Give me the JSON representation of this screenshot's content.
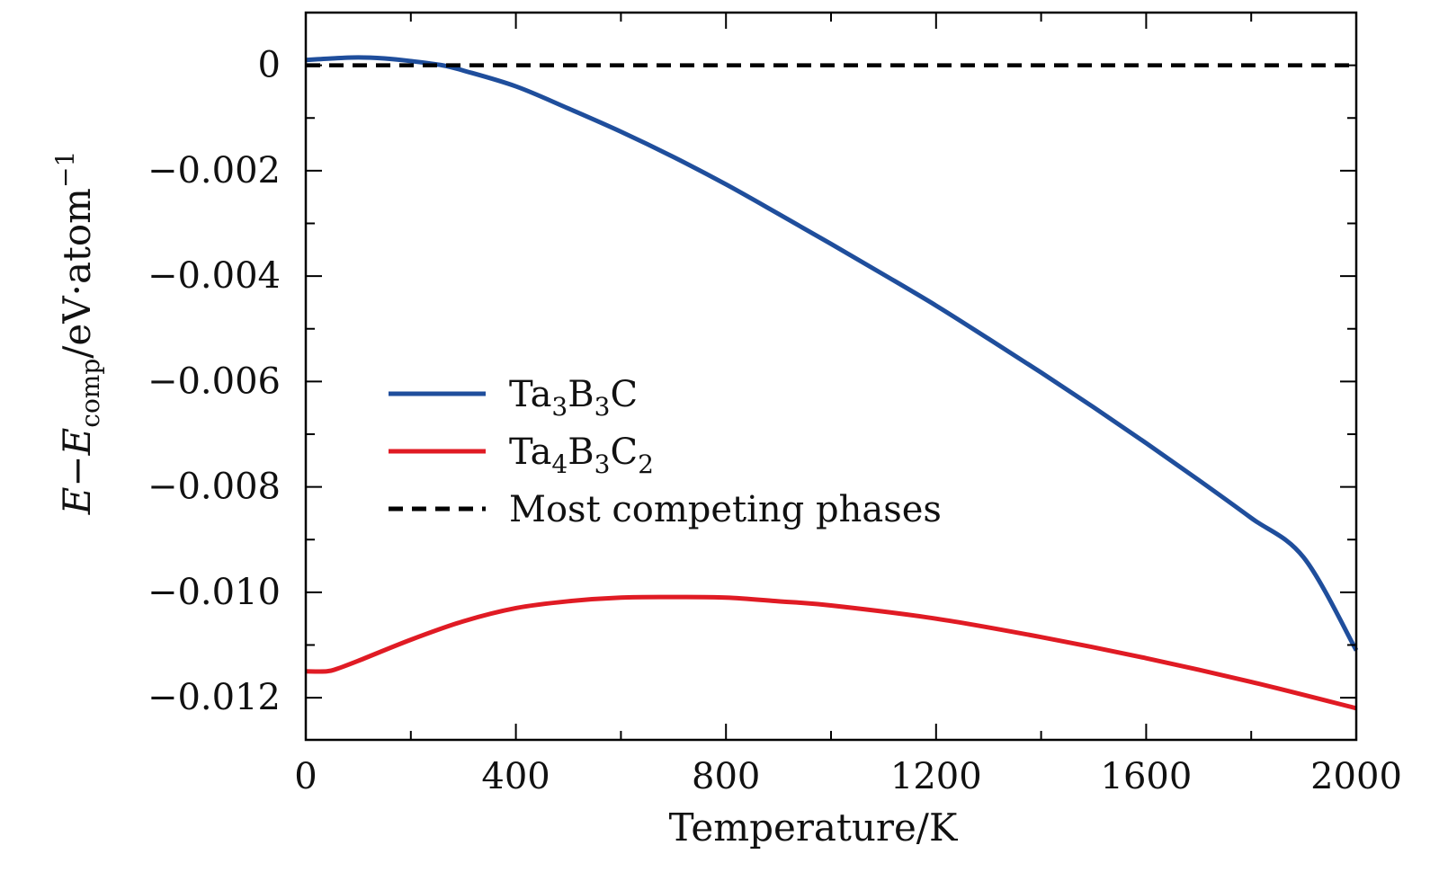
{
  "chart_data": {
    "type": "line",
    "xlabel": "Temperature/K",
    "ylabel": {
      "E1": "E",
      "dash": "−",
      "E2": "E",
      "sub": "comp",
      "unit": "/eV·atom",
      "sup": "−1"
    },
    "xlim": [
      0,
      2000
    ],
    "ylim": [
      -0.0128,
      0.001
    ],
    "x_ticks": [
      0,
      400,
      800,
      1200,
      1600,
      2000
    ],
    "x_tick_labels": [
      "0",
      "400",
      "800",
      "1200",
      "1600",
      "2000"
    ],
    "y_ticks": [
      0,
      -0.002,
      -0.004,
      -0.006,
      -0.008,
      -0.01,
      -0.012
    ],
    "y_tick_labels": [
      "0",
      "−0.002",
      "−0.004",
      "−0.006",
      "−0.008",
      "−0.010",
      "−0.012"
    ],
    "legend_position": "center-left",
    "series": [
      {
        "name": "Ta3B3C",
        "label_parts": [
          [
            "Ta",
            ""
          ],
          [
            "3",
            "sub"
          ],
          [
            "B",
            ""
          ],
          [
            "3",
            "sub"
          ],
          [
            "C",
            ""
          ]
        ],
        "color": "#1f4e9c",
        "style": "solid",
        "x": [
          0,
          50,
          100,
          150,
          200,
          260,
          300,
          400,
          500,
          600,
          700,
          800,
          900,
          1000,
          1100,
          1200,
          1300,
          1400,
          1500,
          1600,
          1700,
          1800,
          1900,
          2000
        ],
        "y": [
          0.0001,
          0.00013,
          0.00015,
          0.00013,
          8e-05,
          0.0,
          -0.0001,
          -0.0004,
          -0.00082,
          -0.00126,
          -0.00174,
          -0.00226,
          -0.00282,
          -0.00339,
          -0.00397,
          -0.00456,
          -0.00519,
          -0.00583,
          -0.00649,
          -0.00717,
          -0.00787,
          -0.00859,
          -0.00934,
          -0.0111
        ]
      },
      {
        "name": "Ta4B3C2",
        "label_parts": [
          [
            "Ta",
            ""
          ],
          [
            "4",
            "sub"
          ],
          [
            "B",
            ""
          ],
          [
            "3",
            "sub"
          ],
          [
            "C",
            ""
          ],
          [
            "2",
            "sub"
          ]
        ],
        "color": "#e01b24",
        "style": "solid",
        "x": [
          0,
          40,
          60,
          100,
          200,
          300,
          400,
          500,
          600,
          700,
          800,
          900,
          1000,
          1200,
          1400,
          1600,
          1800,
          2000
        ],
        "y": [
          -0.0115,
          -0.0115,
          -0.01145,
          -0.0113,
          -0.0109,
          -0.01055,
          -0.0103,
          -0.01017,
          -0.0101,
          -0.01009,
          -0.0101,
          -0.01017,
          -0.01025,
          -0.0105,
          -0.01085,
          -0.01125,
          -0.0117,
          -0.0122
        ]
      },
      {
        "name": "Most competing phases",
        "label_parts": [
          [
            "Most competing phases",
            ""
          ]
        ],
        "color": "#000000",
        "style": "dashed",
        "x": [
          0,
          2000
        ],
        "y": [
          0,
          0
        ]
      }
    ]
  }
}
